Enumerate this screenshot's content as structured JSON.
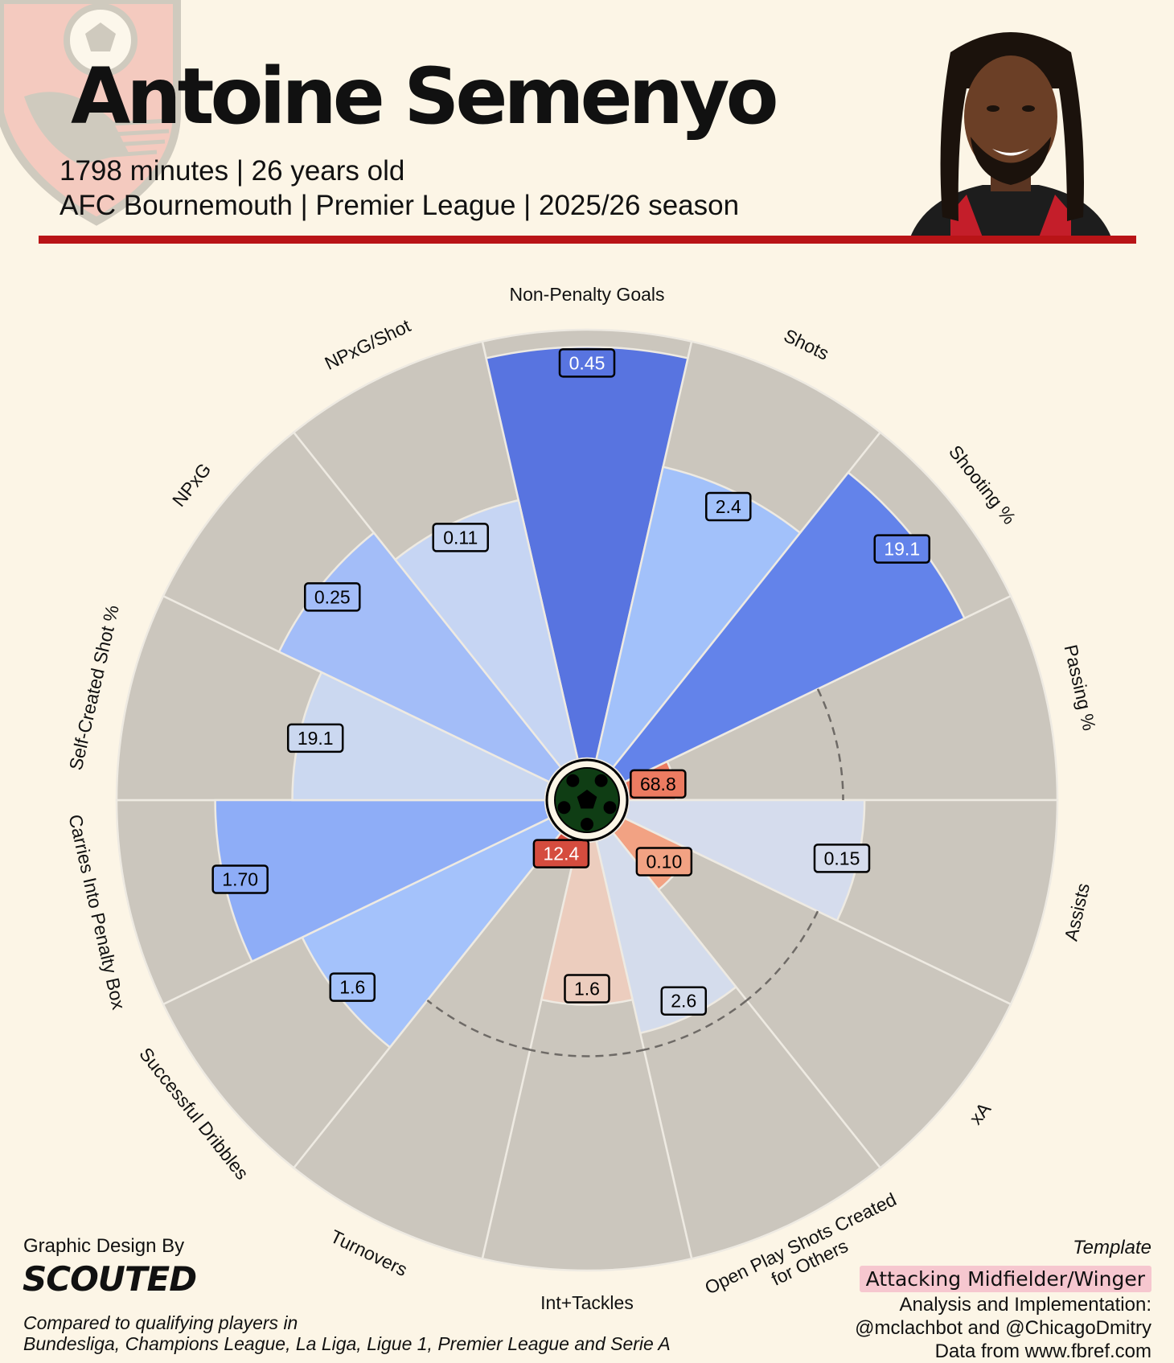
{
  "header": {
    "player_name": "Antoine Semenyo",
    "subtitle_line1": "1798 minutes | 26 years old",
    "subtitle_line2": "AFC Bournemouth | Premier League | 2025/26 season"
  },
  "footer": {
    "design_credit": "Graphic Design By",
    "design_brand": "SCOUTED",
    "comparison_line1": "Compared to qualifying players in",
    "comparison_line2": "Bundesliga, Champions League, La Liga, Ligue 1, Premier League and Serie A",
    "template_label": "Template",
    "template_value": "Attacking Midfielder/Winger",
    "credit_line1": "Analysis and Implementation:",
    "credit_line2": "@mclachbot and @ChicagoDmitry",
    "credit_line3": "Data from www.fbref.com"
  },
  "colors": {
    "accent_red": "#b91417",
    "ring_background": "#cbc6bd",
    "page_background": "#fcf5e6"
  },
  "icons": [
    "club-crest-icon",
    "football-icon",
    "player-photo"
  ],
  "chart_data": {
    "type": "radar",
    "subtype": "polar-bar pizza",
    "series": [
      {
        "metrics": [
          {
            "label": "Non-Penalty Goals",
            "value": "0.45",
            "percentile": 96,
            "color": "#5874e0",
            "group": "attacking"
          },
          {
            "label": "Shots",
            "value": "2.4",
            "percentile": 70,
            "color": "#a2c1fa",
            "group": "attacking"
          },
          {
            "label": "Shooting %",
            "value": "19.1",
            "percentile": 88,
            "color": "#6383ea",
            "group": "attacking"
          },
          {
            "label": "Passing %",
            "value": "68.8",
            "percentile": 11,
            "color": "#ec7b61",
            "group": "possession"
          },
          {
            "label": "Assists",
            "value": "0.15",
            "percentile": 55,
            "color": "#d5dced",
            "group": "creation"
          },
          {
            "label": "xA",
            "value": "0.10",
            "percentile": 17,
            "color": "#f2a283",
            "group": "creation"
          },
          {
            "label": "Open Play Shots Created\nfor Others",
            "value": "2.6",
            "percentile": 46,
            "color": "#d4dcec",
            "group": "creation"
          },
          {
            "label": "Int+Tackles",
            "value": "1.6",
            "percentile": 38,
            "color": "#eccdbe",
            "group": "defending"
          },
          {
            "label": "Turnovers",
            "value": "12.4",
            "percentile": 5,
            "color": "#d54c3e",
            "group": "possession"
          },
          {
            "label": "Successful Dribbles",
            "value": "1.6",
            "percentile": 64,
            "color": "#a4c2fb",
            "group": "possession"
          },
          {
            "label": "Carries Into Penalty Box",
            "value": "1.70",
            "percentile": 77,
            "color": "#8eadf7",
            "group": "possession"
          },
          {
            "label": "Self-Created Shot %",
            "value": "19.1",
            "percentile": 59,
            "color": "#cbd8f0",
            "group": "attacking"
          },
          {
            "label": "NPxG",
            "value": "0.25",
            "percentile": 70,
            "color": "#a3bdf8",
            "group": "attacking"
          },
          {
            "label": "NPxG/Shot",
            "value": "0.11",
            "percentile": 62,
            "color": "#c6d5f3",
            "group": "attacking"
          }
        ]
      }
    ],
    "range": [
      0,
      100
    ],
    "reference_line": 50,
    "grid": false,
    "legend": "none"
  }
}
